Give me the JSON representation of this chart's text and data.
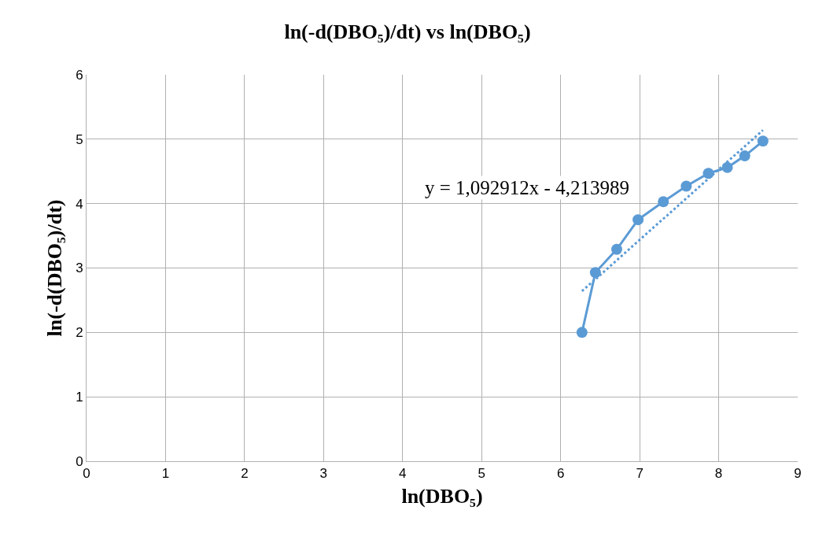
{
  "chart_data": {
    "type": "line",
    "title": "ln(-d(DBO₅)/dt) vs ln(DBO₅)",
    "xlabel": "ln(DBO₅)",
    "ylabel": "ln(-d(DBO₅)/dt)",
    "xlim": [
      0,
      9
    ],
    "xticks": [
      0,
      1,
      2,
      3,
      4,
      5,
      6,
      7,
      8,
      9
    ],
    "ylim": [
      0,
      6
    ],
    "yticks": [
      0,
      1,
      2,
      3,
      4,
      5,
      6
    ],
    "grid": true,
    "annotations": [
      "y = 1,092912x - 4,213989"
    ],
    "series": [
      {
        "color": "#5b9bd5",
        "marker": "circle",
        "line_style": "solid",
        "x": [
          6.27,
          6.44,
          6.71,
          6.98,
          7.3,
          7.59,
          7.87,
          8.11,
          8.33,
          8.56
        ],
        "values": [
          2.0,
          2.93,
          3.29,
          3.75,
          4.03,
          4.27,
          4.47,
          4.56,
          4.74,
          4.97
        ]
      },
      {
        "color": "#5b9bd5",
        "marker": "none",
        "line_style": "dotted",
        "x": [
          6.27,
          8.56
        ],
        "values": [
          2.64,
          5.14
        ]
      }
    ]
  }
}
